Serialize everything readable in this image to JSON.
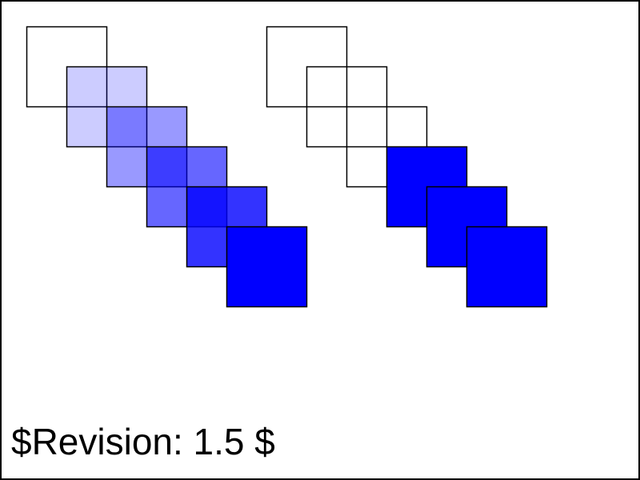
{
  "revision_text": "$Revision: 1.5 $",
  "colors": {
    "fill": "#0000ff",
    "stroke": "#000000",
    "background": "#ffffff",
    "frame": "#000000"
  },
  "groups": [
    {
      "name": "left-group",
      "rects": [
        {
          "fill_opacity": 0
        },
        {
          "fill_opacity": 0.2
        },
        {
          "fill_opacity": 0.4
        },
        {
          "fill_opacity": 0.6
        },
        {
          "fill_opacity": 0.8
        },
        {
          "fill_opacity": 1
        }
      ]
    },
    {
      "name": "right-group",
      "rects": [
        {
          "fill_opacity": 0
        },
        {
          "fill_opacity": 0
        },
        {
          "fill_opacity": 0
        },
        {
          "fill_opacity": 1
        },
        {
          "fill_opacity": 1
        },
        {
          "fill_opacity": 1
        }
      ]
    }
  ]
}
